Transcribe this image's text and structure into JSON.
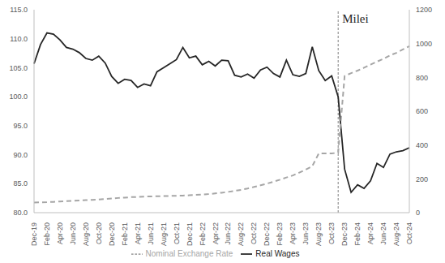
{
  "chart_data": {
    "type": "line",
    "categories": [
      "Dec-19",
      null,
      "Feb-20",
      null,
      "Apr-20",
      null,
      "Jun-20",
      null,
      "Aug-20",
      null,
      "Oct-20",
      null,
      "Dec-20",
      null,
      "Feb-21",
      null,
      "Apr-21",
      null,
      "Jun-21",
      null,
      "Aug-21",
      null,
      "Oct-21",
      null,
      "Dec-21",
      null,
      "Feb-22",
      null,
      "Apr-22",
      null,
      "Jun-22",
      null,
      "Aug-22",
      null,
      "Oct-22",
      null,
      "Dec-22",
      null,
      "Feb-23",
      null,
      "Apr-23",
      null,
      "Jun-23",
      null,
      "Aug-23",
      null,
      "Oct-23",
      null,
      "Dec-23",
      null,
      "Feb-24",
      null,
      "Apr-24",
      null,
      "Jun-24",
      null,
      "Aug-24",
      null,
      "Oct-24"
    ],
    "series": [
      {
        "name": "Real Wages",
        "color": "#262626",
        "line_style": "solid",
        "values": [
          105.7,
          109.0,
          111.0,
          110.8,
          109.8,
          108.5,
          108.2,
          107.6,
          106.6,
          106.3,
          107.0,
          105.8,
          103.5,
          102.3,
          103.0,
          102.8,
          101.6,
          102.2,
          101.9,
          104.3,
          105.0,
          105.7,
          106.4,
          108.5,
          106.7,
          107.0,
          105.5,
          106.1,
          105.3,
          106.3,
          106.2,
          103.7,
          103.4,
          103.9,
          103.2,
          104.6,
          105.1,
          104.0,
          103.4,
          106.3,
          103.8,
          103.5,
          104.0,
          108.6,
          104.5,
          102.8,
          103.6,
          100.0,
          87.5,
          83.5,
          84.8,
          84.2,
          85.5,
          88.5,
          87.8,
          90.1,
          90.5,
          90.7,
          91.2
        ]
      },
      {
        "name": "Nominal Exchange Rate",
        "color": "#a6a6a6",
        "line_style": "dashed",
        "axis": "y2",
        "values": [
          60,
          61,
          62,
          64,
          66,
          68,
          70,
          72,
          74,
          76,
          78,
          81,
          84,
          87,
          89,
          92,
          93,
          95,
          96,
          97,
          98,
          99,
          100,
          101,
          103,
          105,
          107,
          110,
          114,
          118,
          123,
          129,
          135,
          143,
          152,
          162,
          172,
          183,
          195,
          208,
          220,
          237,
          255,
          275,
          350,
          350,
          350,
          355,
          808,
          825,
          840,
          857,
          875,
          893,
          910,
          930,
          945,
          965,
          985
        ]
      }
    ],
    "ylim": [
      80,
      115
    ],
    "yticks": [
      {
        "value": 80,
        "label": "80.0"
      },
      {
        "value": 85,
        "label": "85.0"
      },
      {
        "value": 90,
        "label": "90.0"
      },
      {
        "value": 95,
        "label": "95.0"
      },
      {
        "value": 100,
        "label": "100.0"
      },
      {
        "value": 105,
        "label": "105.0"
      },
      {
        "value": 110,
        "label": "110.0"
      },
      {
        "value": 115,
        "label": "115.0"
      }
    ],
    "y2lim": [
      0,
      1200
    ],
    "y2ticks": [
      0,
      200,
      400,
      600,
      800,
      1000,
      1200
    ],
    "annotations": [
      {
        "text": "Milei",
        "x": 47
      }
    ],
    "legend": "bottom",
    "grid": false
  }
}
